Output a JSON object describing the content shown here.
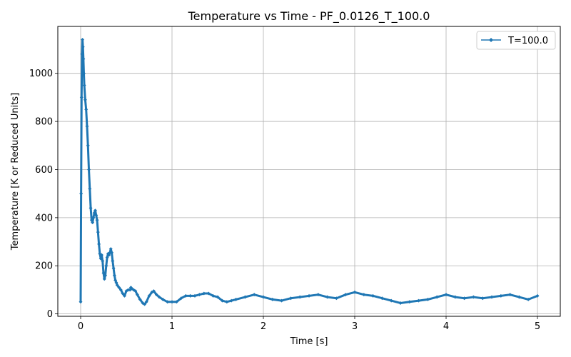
{
  "chart_data": {
    "type": "line",
    "title": "Temperature vs Time - PF_0.0126_T_100.0",
    "xlabel": "Time [s]",
    "ylabel": "Temperature [K or Reduced Units]",
    "xlim": [
      -0.25,
      5.25
    ],
    "ylim": [
      -10,
      1195
    ],
    "x_ticks": [
      0,
      1,
      2,
      3,
      4,
      5
    ],
    "y_ticks": [
      0,
      200,
      400,
      600,
      800,
      1000
    ],
    "grid": true,
    "legend_position": "top-right",
    "color": "#1f77b4",
    "marker": "diamond",
    "series": [
      {
        "name": "T=100.0",
        "x": [
          0.0,
          0.005,
          0.01,
          0.015,
          0.02,
          0.025,
          0.03,
          0.035,
          0.04,
          0.05,
          0.06,
          0.07,
          0.08,
          0.09,
          0.1,
          0.11,
          0.12,
          0.13,
          0.14,
          0.15,
          0.16,
          0.17,
          0.18,
          0.19,
          0.2,
          0.21,
          0.22,
          0.23,
          0.24,
          0.25,
          0.26,
          0.27,
          0.28,
          0.29,
          0.3,
          0.31,
          0.32,
          0.33,
          0.34,
          0.35,
          0.36,
          0.37,
          0.38,
          0.39,
          0.4,
          0.42,
          0.44,
          0.46,
          0.48,
          0.5,
          0.52,
          0.54,
          0.55,
          0.56,
          0.58,
          0.6,
          0.62,
          0.65,
          0.68,
          0.7,
          0.72,
          0.75,
          0.78,
          0.8,
          0.83,
          0.86,
          0.9,
          0.95,
          1.0,
          1.05,
          1.1,
          1.15,
          1.2,
          1.25,
          1.3,
          1.35,
          1.4,
          1.45,
          1.5,
          1.55,
          1.6,
          1.65,
          1.7,
          1.8,
          1.9,
          2.0,
          2.1,
          2.2,
          2.3,
          2.4,
          2.5,
          2.6,
          2.7,
          2.8,
          2.9,
          3.0,
          3.1,
          3.2,
          3.3,
          3.4,
          3.5,
          3.6,
          3.7,
          3.8,
          3.9,
          4.0,
          4.1,
          4.2,
          4.3,
          4.4,
          4.5,
          4.6,
          4.7,
          4.8,
          4.9,
          5.0
        ],
        "y": [
          50,
          500,
          900,
          1080,
          1140,
          1110,
          1060,
          1000,
          950,
          890,
          850,
          780,
          700,
          600,
          520,
          440,
          390,
          380,
          400,
          420,
          430,
          410,
          390,
          340,
          290,
          250,
          230,
          245,
          220,
          170,
          145,
          160,
          200,
          235,
          250,
          245,
          255,
          270,
          255,
          220,
          190,
          160,
          140,
          130,
          120,
          110,
          100,
          85,
          75,
          95,
          100,
          100,
          110,
          105,
          100,
          95,
          80,
          60,
          45,
          40,
          50,
          75,
          90,
          95,
          80,
          70,
          60,
          50,
          50,
          50,
          65,
          75,
          75,
          75,
          80,
          85,
          85,
          75,
          70,
          55,
          50,
          55,
          60,
          70,
          80,
          70,
          60,
          55,
          65,
          70,
          75,
          80,
          70,
          65,
          80,
          90,
          80,
          75,
          65,
          55,
          45,
          50,
          55,
          60,
          70,
          80,
          70,
          65,
          70,
          65,
          70,
          75,
          80,
          70,
          60,
          75
        ]
      }
    ]
  }
}
